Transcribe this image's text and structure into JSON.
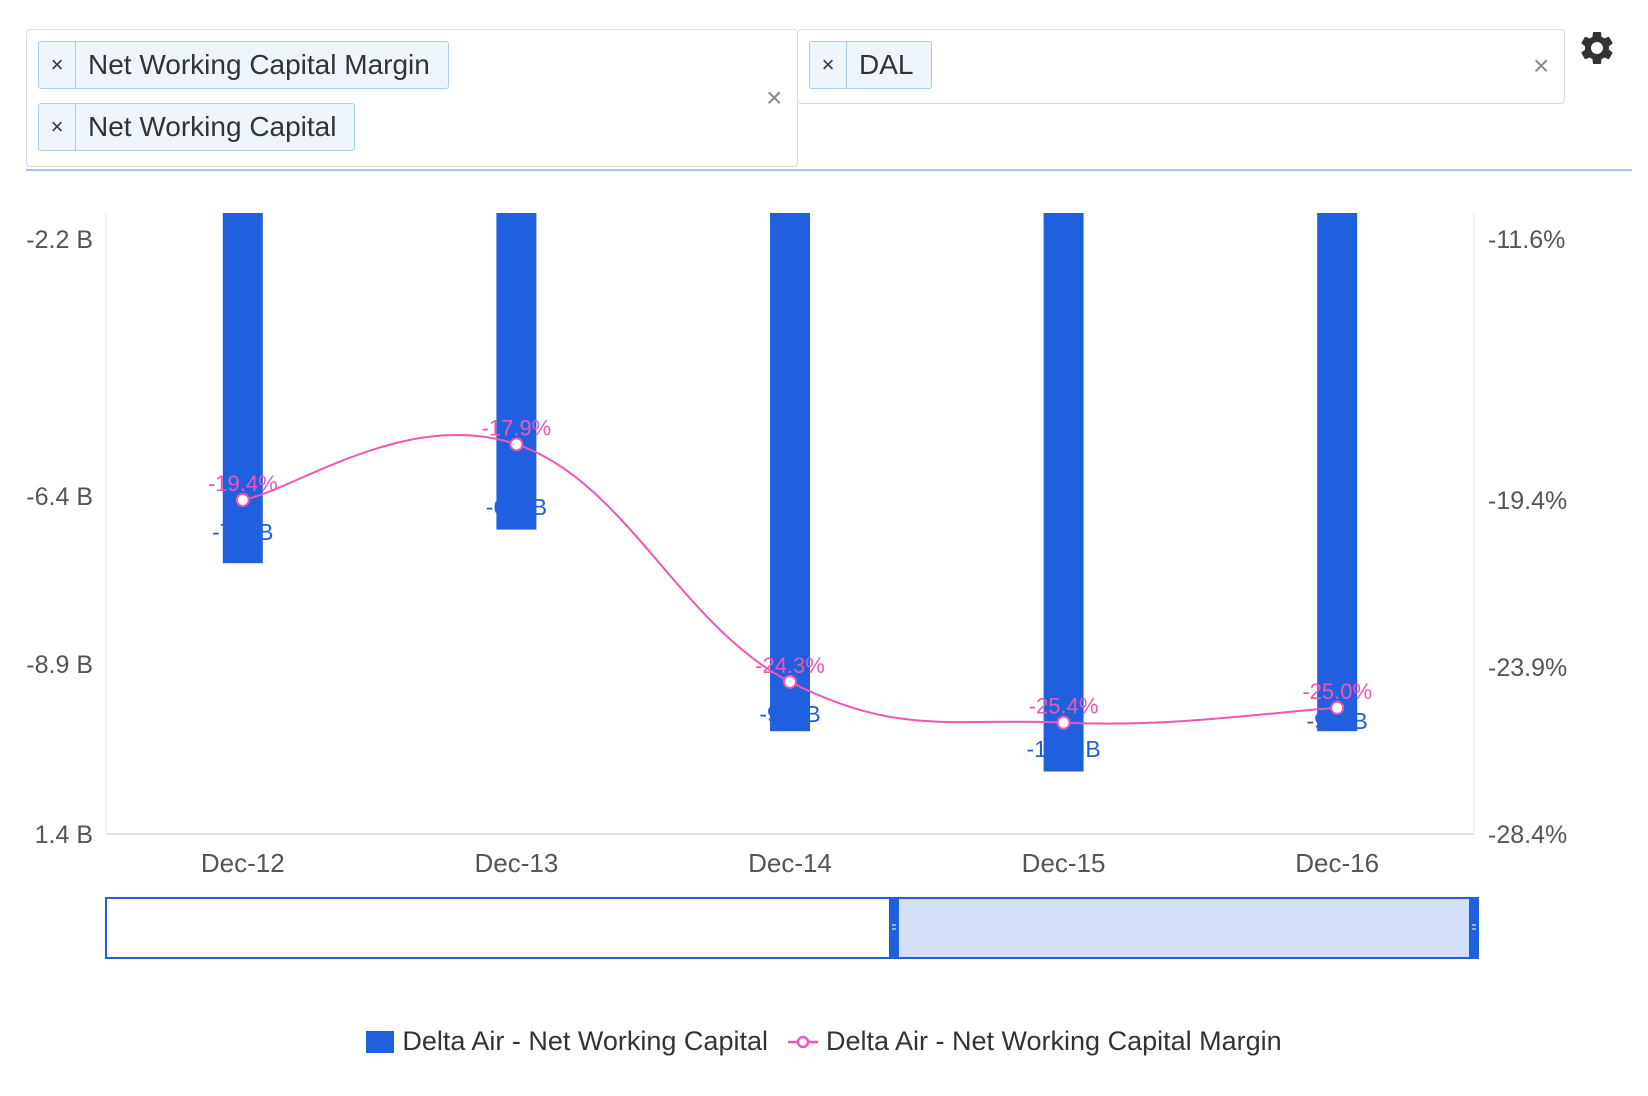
{
  "filters": {
    "metrics": {
      "tags": [
        "Net Working Capital Margin",
        "Net Working Capital"
      ],
      "remove_symbol": "×",
      "clear_symbol": "×"
    },
    "tickers": {
      "tags": [
        "DAL"
      ],
      "remove_symbol": "×",
      "clear_symbol": "×"
    }
  },
  "settings": {
    "icon": "gear-icon"
  },
  "colors": {
    "bar": "#2060de",
    "line": "#f055b5",
    "axis": "#555555",
    "navigator_fill": "#d4e0f7",
    "navigator_border": "#2060de"
  },
  "chart_data": {
    "type": "bar",
    "categories": [
      "Dec-12",
      "Dec-13",
      "Dec-14",
      "Dec-15",
      "Dec-16"
    ],
    "y_left": {
      "ticks": [
        "-2.2 B",
        "-6.4 B",
        "-8.9 B",
        "1.4 B"
      ]
    },
    "y_right": {
      "ticks": [
        "-11.6%",
        "-19.4%",
        "-23.9%",
        "-28.4%"
      ],
      "min": -28.4,
      "max": -11.6
    },
    "series": [
      {
        "name": "Delta Air - Net Working Capital",
        "type": "bar",
        "values": [
          -7.4,
          -6.9,
          -9.9,
          -10.5,
          -9.9
        ],
        "labels": [
          "-7.4 B",
          "-6.9 B",
          "-9.9 B",
          "-10.5 B",
          "-9.9 B"
        ]
      },
      {
        "name": "Delta Air - Net Working Capital Margin",
        "type": "line",
        "values": [
          -19.4,
          -17.9,
          -24.3,
          -25.4,
          -25.0
        ],
        "labels": [
          "-19.4%",
          "-17.9%",
          "-24.3%",
          "-25.4%",
          "-25.0%"
        ]
      }
    ],
    "legend": "bottom-center",
    "navigator": {
      "selected_range": [
        0.576,
        1.0
      ]
    }
  }
}
